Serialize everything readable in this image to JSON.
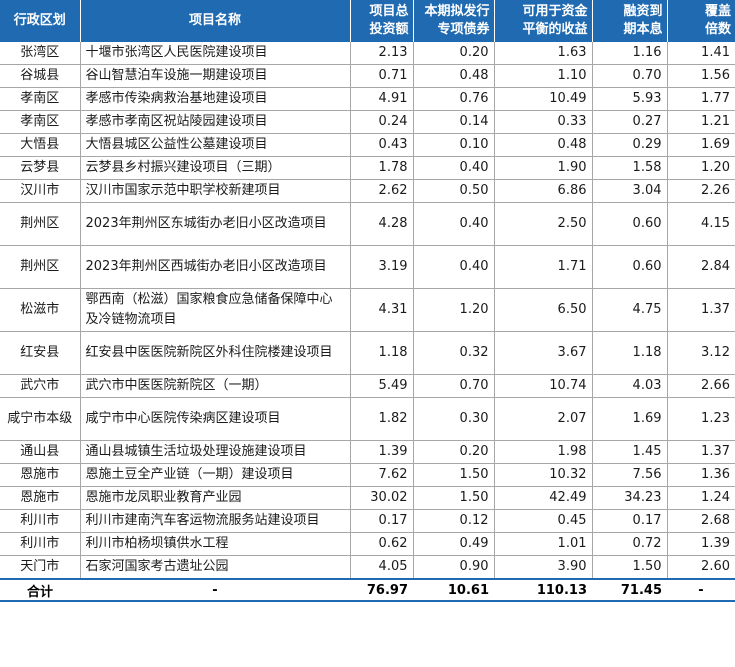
{
  "headers": [
    "行政区划",
    "项目名称",
    "项目总\n投资额",
    "本期拟发行\n专项债券",
    "可用于资金\n平衡的收益",
    "融资到\n期本息",
    "覆盖\n倍数"
  ],
  "rows": [
    {
      "region": "张湾区",
      "name": "十堰市张湾区人民医院建设项目",
      "v": [
        "2.13",
        "0.20",
        "1.63",
        "1.16",
        "1.41"
      ]
    },
    {
      "region": "谷城县",
      "name": "谷山智慧泊车设施一期建设项目",
      "v": [
        "0.71",
        "0.48",
        "1.10",
        "0.70",
        "1.56"
      ]
    },
    {
      "region": "孝南区",
      "name": "孝感市传染病救治基地建设项目",
      "v": [
        "4.91",
        "0.76",
        "10.49",
        "5.93",
        "1.77"
      ]
    },
    {
      "region": "孝南区",
      "name": "孝感市孝南区祝站陵园建设项目",
      "v": [
        "0.24",
        "0.14",
        "0.33",
        "0.27",
        "1.21"
      ]
    },
    {
      "region": "大悟县",
      "name": "大悟县城区公益性公墓建设项目",
      "v": [
        "0.43",
        "0.10",
        "0.48",
        "0.29",
        "1.69"
      ]
    },
    {
      "region": "云梦县",
      "name": "云梦县乡村振兴建设项目（三期）",
      "v": [
        "1.78",
        "0.40",
        "1.90",
        "1.58",
        "1.20"
      ]
    },
    {
      "region": "汉川市",
      "name": "汉川市国家示范中职学校新建项目",
      "v": [
        "2.62",
        "0.50",
        "6.86",
        "3.04",
        "2.26"
      ]
    },
    {
      "region": "荆州区",
      "name": "2023年荆州区东城街办老旧小区改造项目",
      "v": [
        "4.28",
        "0.40",
        "2.50",
        "0.60",
        "4.15"
      ]
    },
    {
      "region": "荆州区",
      "name": "2023年荆州区西城街办老旧小区改造项目",
      "v": [
        "3.19",
        "0.40",
        "1.71",
        "0.60",
        "2.84"
      ]
    },
    {
      "region": "松滋市",
      "name": "鄂西南（松滋）国家粮食应急储备保障中心及冷链物流项目",
      "v": [
        "4.31",
        "1.20",
        "6.50",
        "4.75",
        "1.37"
      ]
    },
    {
      "region": "红安县",
      "name": "红安县中医医院新院区外科住院楼建设项目",
      "v": [
        "1.18",
        "0.32",
        "3.67",
        "1.18",
        "3.12"
      ]
    },
    {
      "region": "武穴市",
      "name": "武穴市中医医院新院区（一期）",
      "v": [
        "5.49",
        "0.70",
        "10.74",
        "4.03",
        "2.66"
      ]
    },
    {
      "region": "咸宁市本级",
      "name": "咸宁市中心医院传染病区建设项目",
      "v": [
        "1.82",
        "0.30",
        "2.07",
        "1.69",
        "1.23"
      ]
    },
    {
      "region": "通山县",
      "name": "通山县城镇生活垃圾处理设施建设项目",
      "v": [
        "1.39",
        "0.20",
        "1.98",
        "1.45",
        "1.37"
      ]
    },
    {
      "region": "恩施市",
      "name": "恩施土豆全产业链（一期）建设项目",
      "v": [
        "7.62",
        "1.50",
        "10.32",
        "7.56",
        "1.36"
      ]
    },
    {
      "region": "恩施市",
      "name": "恩施市龙凤职业教育产业园",
      "v": [
        "30.02",
        "1.50",
        "42.49",
        "34.23",
        "1.24"
      ]
    },
    {
      "region": "利川市",
      "name": "利川市建南汽车客运物流服务站建设项目",
      "v": [
        "0.17",
        "0.12",
        "0.45",
        "0.17",
        "2.68"
      ]
    },
    {
      "region": "利川市",
      "name": "利川市柏杨坝镇供水工程",
      "v": [
        "0.62",
        "0.49",
        "1.01",
        "0.72",
        "1.39"
      ]
    },
    {
      "region": "天门市",
      "name": "石家河国家考古遗址公园",
      "v": [
        "4.05",
        "0.90",
        "3.90",
        "1.50",
        "2.60"
      ]
    }
  ],
  "total": {
    "label": "合计",
    "name": "-",
    "v": [
      "76.97",
      "10.61",
      "110.13",
      "71.45",
      "-"
    ]
  },
  "colors": {
    "header_bg": "#1f6ab1",
    "header_text": "#ffffff",
    "grid": "#a7a7a7"
  }
}
